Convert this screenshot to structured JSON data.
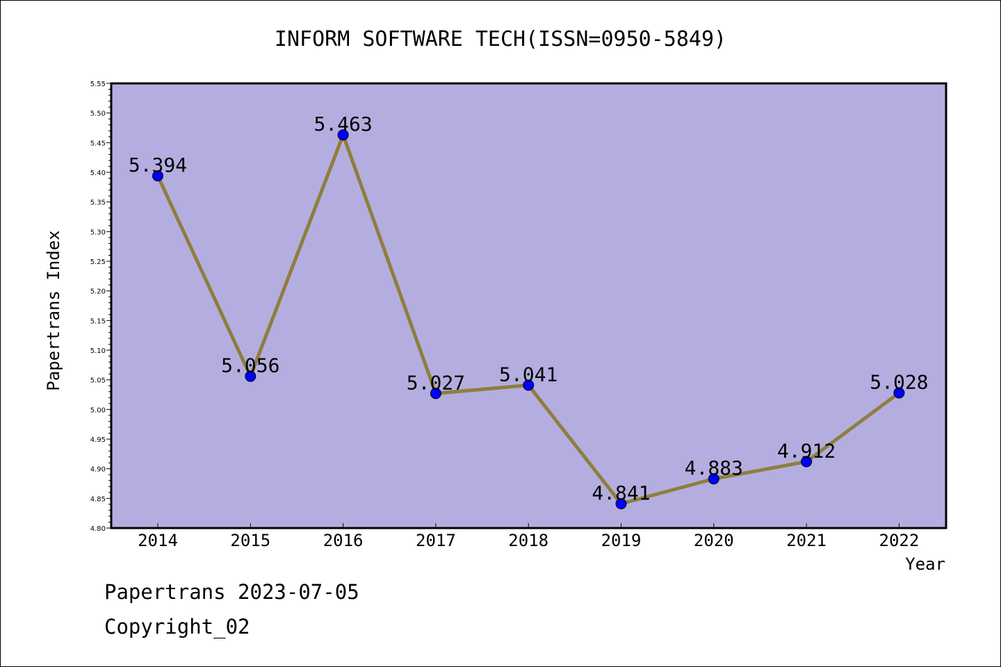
{
  "colors": {
    "plot_background": "#b4aee0",
    "line": "#8f7e3c",
    "marker": "#0000ff",
    "axis": "#000000"
  },
  "chart_data": {
    "type": "line",
    "title": "INFORM SOFTWARE TECH(ISSN=0950-5849)",
    "xlabel": "Year",
    "ylabel": "Papertrans Index",
    "categories": [
      "2014",
      "2015",
      "2016",
      "2017",
      "2018",
      "2019",
      "2020",
      "2021",
      "2022"
    ],
    "series": [
      {
        "values": [
          5.394,
          5.056,
          5.463,
          5.027,
          5.041,
          4.841,
          4.883,
          4.912,
          5.028
        ],
        "labels": [
          "5.394",
          "5.056",
          "5.463",
          "5.027",
          "5.041",
          "4.841",
          "4.883",
          "4.912",
          "5.028"
        ]
      }
    ],
    "ylim": [
      4.8,
      5.55
    ],
    "yticks": [
      "4.80",
      "4.85",
      "4.90",
      "4.95",
      "5.00",
      "5.05",
      "5.10",
      "5.15",
      "5.20",
      "5.25",
      "5.30",
      "5.35",
      "5.40",
      "5.45",
      "5.50",
      "5.55"
    ],
    "grid": false,
    "legend": "none"
  },
  "footer": {
    "line1": "Papertrans 2023-07-05",
    "line2": "Copyright_02"
  }
}
